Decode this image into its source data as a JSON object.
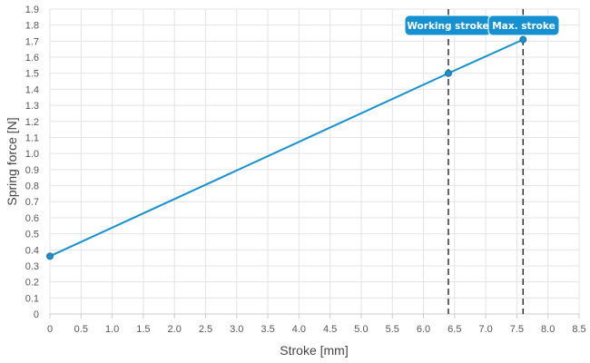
{
  "chart_data": {
    "type": "line",
    "title": "",
    "xlabel": "Stroke [mm]",
    "ylabel": "Spring force [N]",
    "xlim": [
      0,
      8.5
    ],
    "ylim": [
      0,
      1.9
    ],
    "x_ticks": [
      0,
      0.5,
      1.0,
      1.5,
      2.0,
      2.5,
      3.0,
      3.5,
      4.0,
      4.5,
      5.0,
      5.5,
      6.0,
      6.5,
      7.0,
      7.5,
      8.0,
      8.5
    ],
    "y_ticks": [
      0,
      0.1,
      0.2,
      0.3,
      0.4,
      0.5,
      0.6,
      0.7,
      0.8,
      0.9,
      1.0,
      1.1,
      1.2,
      1.3,
      1.4,
      1.5,
      1.6,
      1.7,
      1.8,
      1.9
    ],
    "grid": true,
    "series": [
      {
        "x": [
          0,
          6.4,
          7.6
        ],
        "y": [
          0.36,
          1.5,
          1.71
        ],
        "color": "#1590d0"
      }
    ],
    "markers": [
      {
        "label": "Working stroke",
        "x": 6.4,
        "y": 1.5
      },
      {
        "label": "Max. stroke",
        "x": 7.6,
        "y": 1.71
      }
    ],
    "colors": {
      "line": "#1590d0",
      "callout": "#1590d0",
      "grid": "#e3e3e3",
      "marker_line": "#333333"
    }
  }
}
